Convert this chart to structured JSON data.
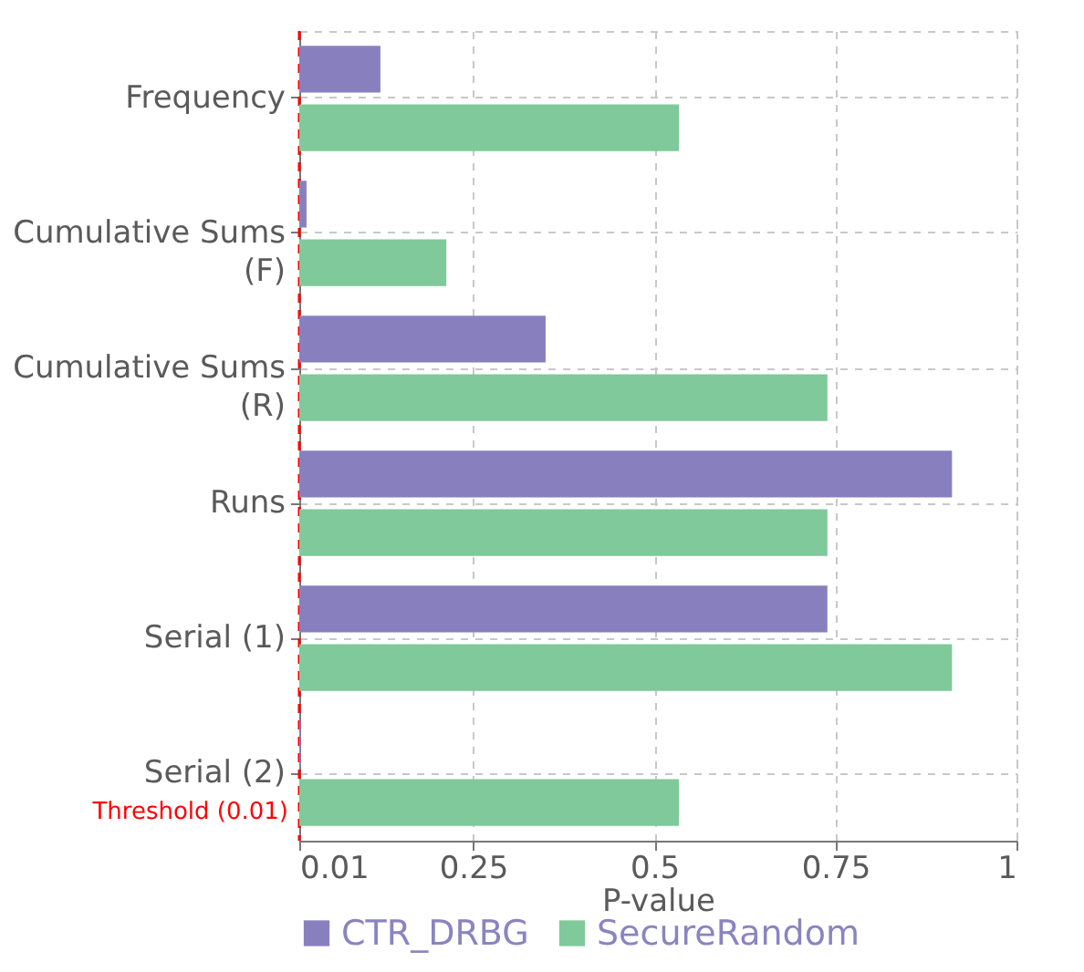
{
  "chart_data": {
    "type": "bar",
    "orientation": "horizontal",
    "categories": [
      "Frequency",
      "Cumulative Sums (F)",
      "Cumulative Sums (R)",
      "Runs",
      "Serial (1)",
      "Serial (2)"
    ],
    "series": [
      {
        "name": "CTR_DRBG",
        "color": "#8880be",
        "values": [
          0.122,
          0.02,
          0.35,
          0.911,
          0.739,
          0.012
        ]
      },
      {
        "name": "SecureRandom",
        "color": "#7fc99a",
        "values": [
          0.534,
          0.213,
          0.739,
          0.739,
          0.911,
          0.534
        ]
      }
    ],
    "xlabel": "P-value",
    "xlim": [
      0.01,
      1
    ],
    "xticks": [
      0.01,
      0.25,
      0.5,
      0.75,
      1
    ],
    "grid": true,
    "legend": "bottom",
    "ref_lines": [
      {
        "axis": "x",
        "value": 0.01,
        "label": "Threshold (0.01)",
        "color": "#ff0000",
        "line_style": "dashed"
      }
    ]
  }
}
